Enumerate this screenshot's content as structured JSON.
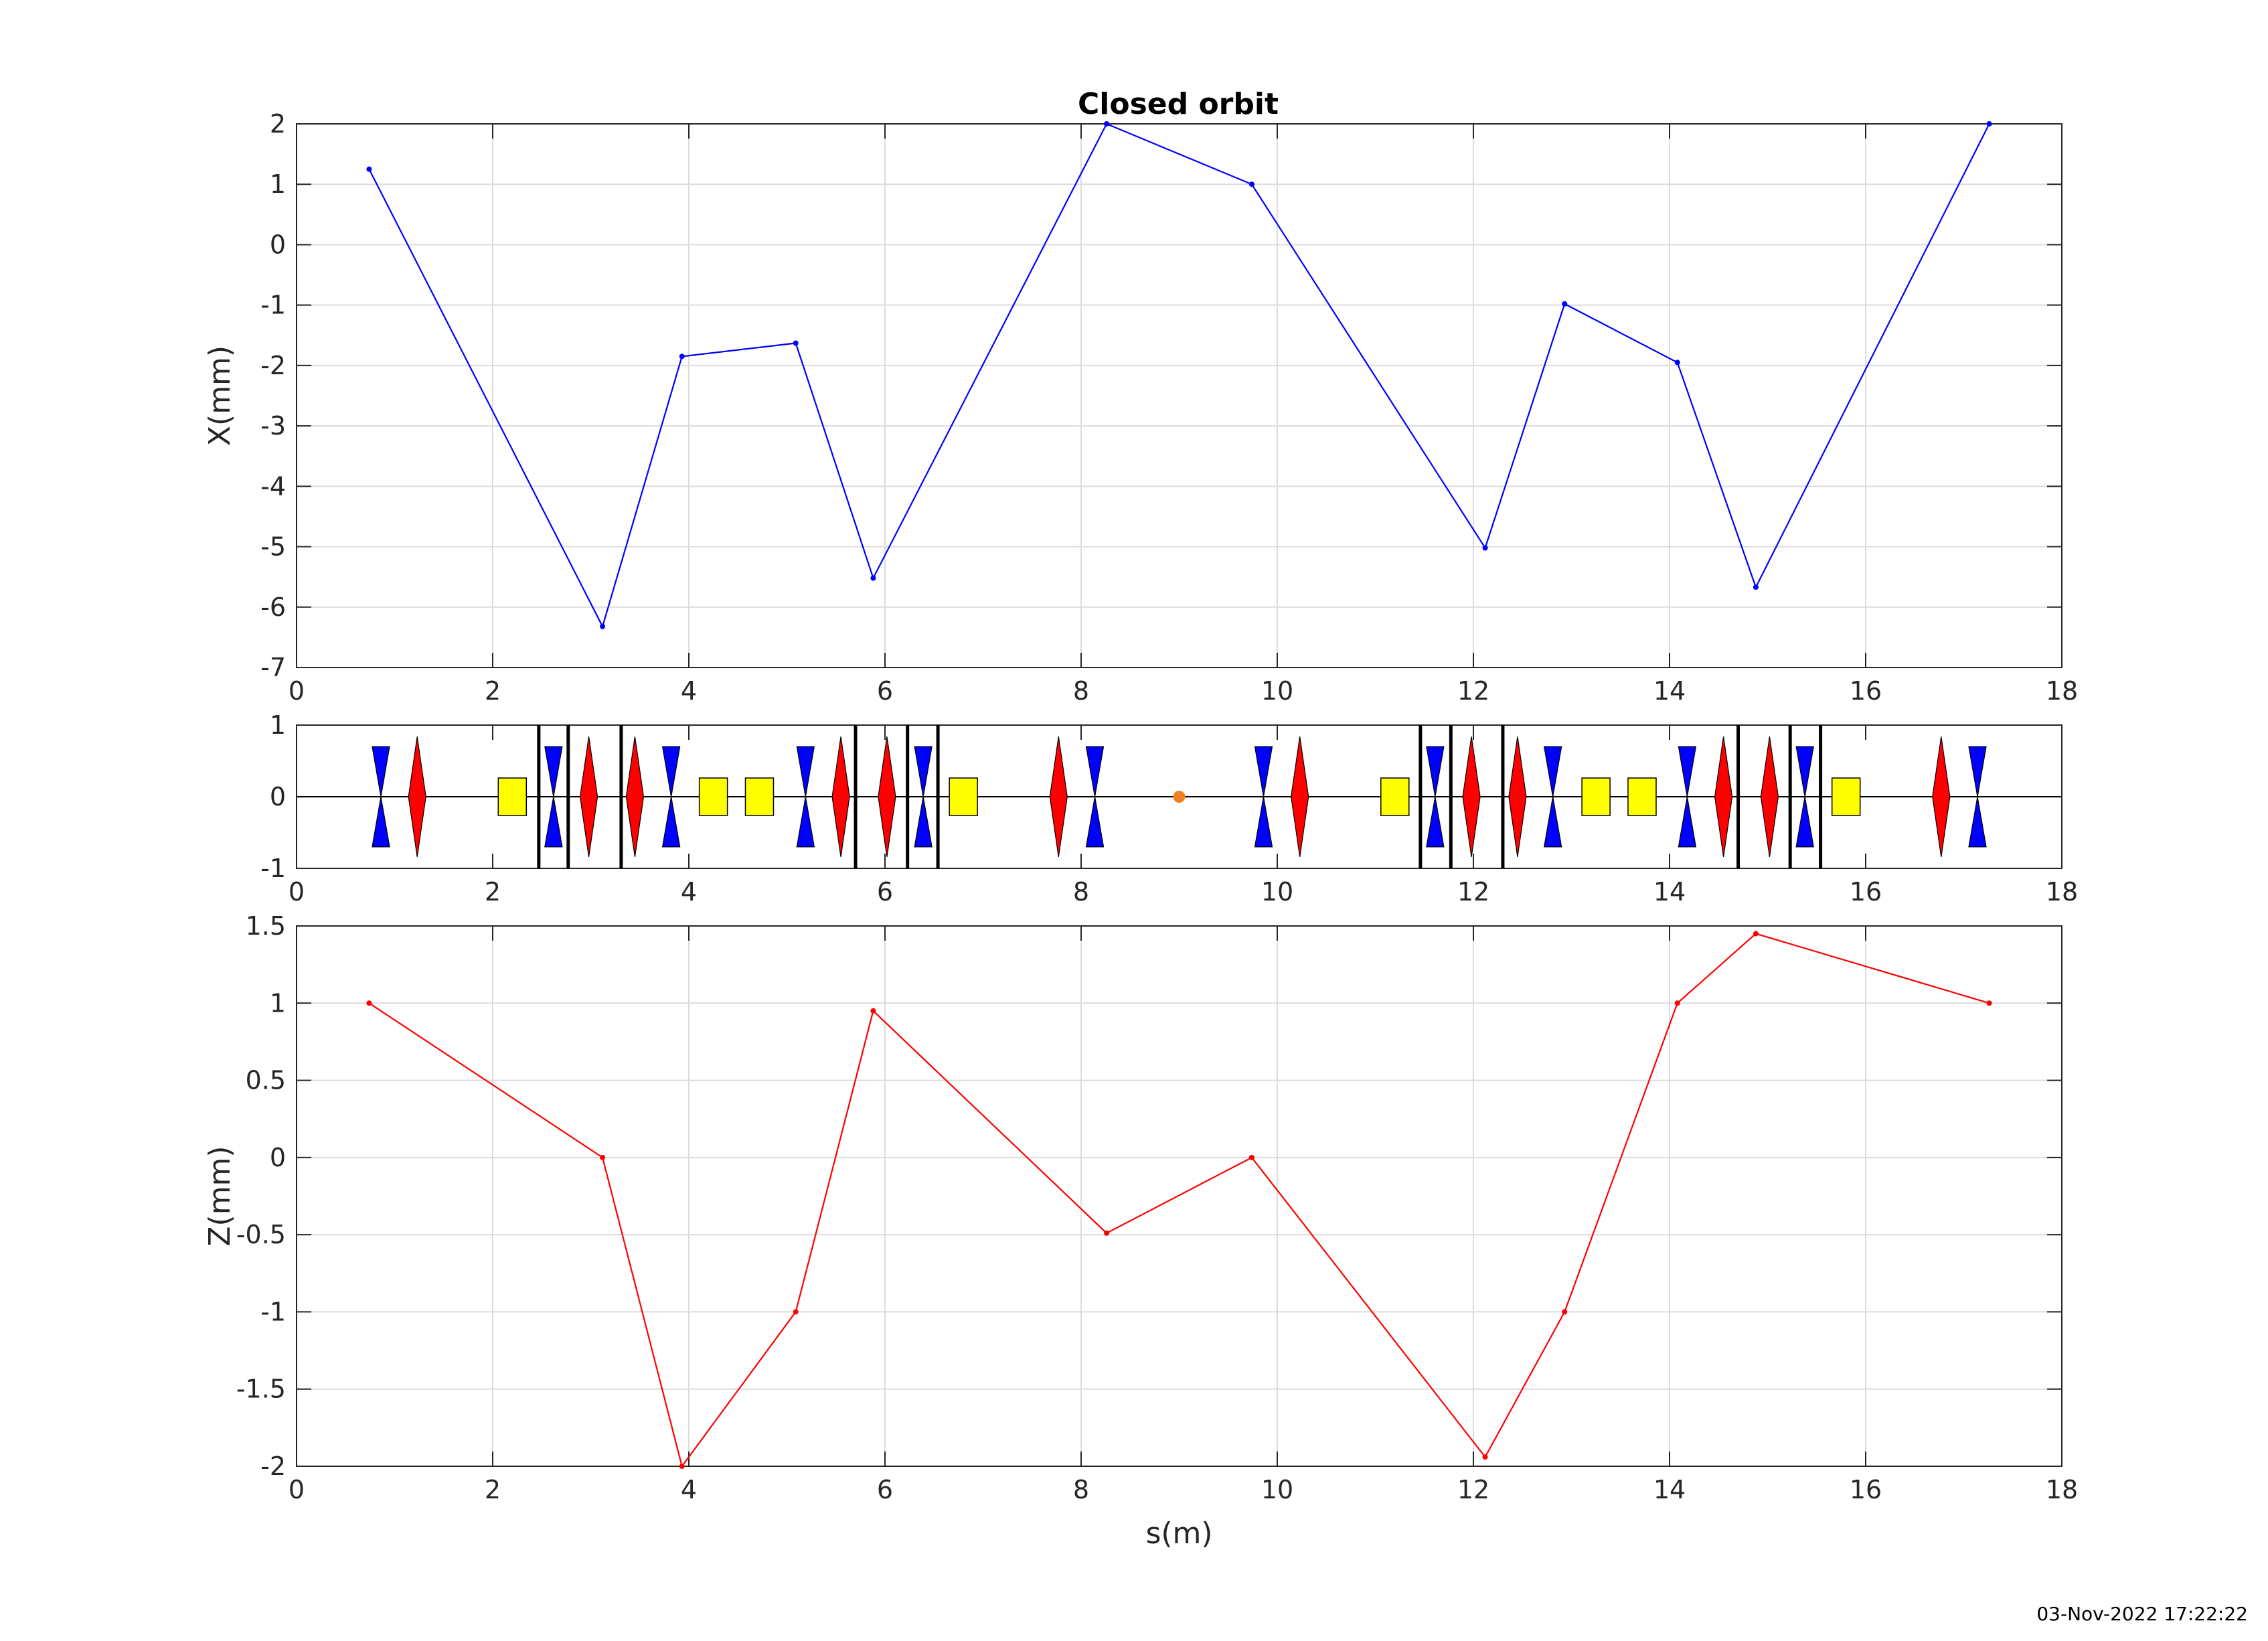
{
  "figure": {
    "title": "Closed orbit",
    "timestamp": "03-Nov-2022 17:22:22"
  },
  "colors": {
    "x_series": "#0000ff",
    "z_series": "#ff0000",
    "focusing_quad": "#ff0000",
    "defocusing_quad": "#0000ff",
    "corrector": "#ffff00",
    "bpm_marker": "#000000",
    "observation_point": "#f08020",
    "grid": "#dcdcdc"
  },
  "chart_data": [
    {
      "id": "x_orbit",
      "type": "line",
      "title": "Closed orbit",
      "xlabel": "s(m)",
      "ylabel": "X(mm)",
      "xlim": [
        0,
        18
      ],
      "ylim": [
        -7,
        2
      ],
      "xticks": [
        0,
        2,
        4,
        6,
        8,
        10,
        12,
        14,
        16,
        18
      ],
      "yticks": [
        2,
        1,
        0,
        -1,
        -2,
        -3,
        -4,
        -5,
        -6,
        -7
      ],
      "grid": true,
      "series": [
        {
          "color": "#0000ff",
          "x": [
            0.74,
            3.12,
            3.93,
            5.09,
            5.88,
            8.26,
            9.74,
            12.12,
            12.93,
            14.08,
            14.88,
            17.26
          ],
          "y": [
            1.25,
            -6.32,
            -1.85,
            -1.63,
            -5.52,
            2.0,
            1.0,
            -5.02,
            -0.98,
            -1.95,
            -5.67,
            2.0
          ]
        }
      ]
    },
    {
      "id": "lattice",
      "type": "scatter",
      "xlim": [
        0,
        18
      ],
      "ylim": [
        -1,
        1
      ],
      "xticks": [
        0,
        2,
        4,
        6,
        8,
        10,
        12,
        14,
        16,
        18
      ],
      "yticks": [
        1,
        0,
        -1
      ],
      "grid": false,
      "elements": {
        "defocusing_quads_s": [
          0.86,
          2.62,
          3.82,
          5.19,
          6.39,
          8.14,
          9.86,
          11.61,
          12.81,
          14.18,
          15.38,
          17.14
        ],
        "focusing_quads_s": [
          1.23,
          2.98,
          3.45,
          5.55,
          6.02,
          7.77,
          10.23,
          11.98,
          12.45,
          14.55,
          15.02,
          16.77
        ],
        "correctors_s": [
          2.2,
          4.25,
          4.72,
          6.8,
          11.2,
          13.25,
          13.72,
          15.8
        ],
        "bpms_s": [
          2.47,
          2.77,
          3.31,
          5.7,
          6.23,
          6.54,
          11.46,
          11.77,
          12.3,
          14.7,
          15.23,
          15.54
        ],
        "observation_point_s": 9.0
      }
    },
    {
      "id": "z_orbit",
      "type": "line",
      "xlabel": "s(m)",
      "ylabel": "Z(mm)",
      "xlim": [
        0,
        18
      ],
      "ylim": [
        -2,
        1.5
      ],
      "xticks": [
        0,
        2,
        4,
        6,
        8,
        10,
        12,
        14,
        16,
        18
      ],
      "yticks": [
        1.5,
        1,
        0.5,
        0,
        -0.5,
        -1,
        -1.5,
        -2
      ],
      "grid": true,
      "series": [
        {
          "color": "#ff0000",
          "x": [
            0.74,
            3.12,
            3.93,
            5.09,
            5.88,
            8.26,
            9.74,
            12.12,
            12.93,
            14.08,
            14.88,
            17.26
          ],
          "y": [
            1.0,
            0.0,
            -2.0,
            -1.0,
            0.95,
            -0.49,
            0.0,
            -1.94,
            -1.0,
            1.0,
            1.45,
            1.0
          ]
        }
      ]
    }
  ]
}
